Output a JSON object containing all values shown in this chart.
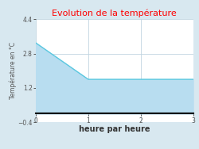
{
  "title": "Evolution de la température",
  "title_color": "#ff0000",
  "xlabel": "heure par heure",
  "ylabel": "Température en °C",
  "x": [
    0,
    1,
    2,
    3
  ],
  "y": [
    3.3,
    1.6,
    1.6,
    1.6
  ],
  "fill_color": "#b8ddf0",
  "line_color": "#5bc8e0",
  "xlim": [
    0,
    3
  ],
  "ylim": [
    -0.4,
    4.4
  ],
  "xticks": [
    0,
    1,
    2,
    3
  ],
  "yticks": [
    -0.4,
    1.2,
    2.8,
    4.4
  ],
  "bg_color": "#d8e8f0",
  "plot_bg_color": "#ffffff",
  "grid_color": "#c0d4e0",
  "baseline": 0
}
